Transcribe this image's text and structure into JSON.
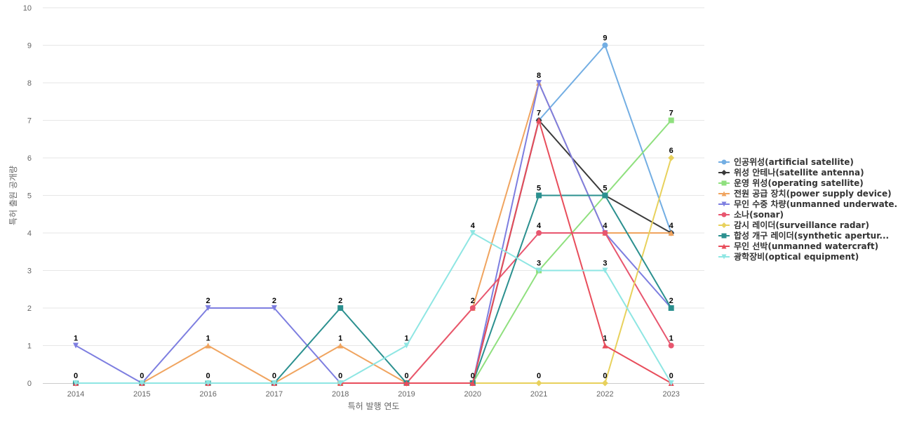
{
  "chart_data": {
    "type": "line",
    "title": "",
    "xlabel": "특허 발행 연도",
    "ylabel": "특허 출원 공개량",
    "x": [
      "2014",
      "2015",
      "2016",
      "2017",
      "2018",
      "2019",
      "2020",
      "2021",
      "2022",
      "2023"
    ],
    "ylim": [
      0,
      10
    ],
    "yticks": [
      0,
      1,
      2,
      3,
      4,
      5,
      6,
      7,
      8,
      9,
      10
    ],
    "grid": true,
    "legend_position": "right",
    "series": [
      {
        "name": "인공위성(artificial satellite)",
        "color": "#73aee3",
        "marker": "circle",
        "values": [
          0,
          0,
          0,
          0,
          0,
          0,
          0,
          7,
          9,
          4
        ]
      },
      {
        "name": "위성 안테나(satellite antenna)",
        "color": "#3a3a3a",
        "marker": "diamond",
        "values": [
          0,
          0,
          0,
          0,
          0,
          0,
          0,
          7,
          5,
          4
        ]
      },
      {
        "name": "운영 위성(operating satellite)",
        "color": "#8fe07e",
        "marker": "square",
        "values": [
          0,
          0,
          0,
          0,
          0,
          0,
          0,
          3,
          5,
          7
        ]
      },
      {
        "name": "전원 공급 장치(power supply device)",
        "color": "#f0a45f",
        "marker": "triangle",
        "values": [
          0,
          0,
          1,
          0,
          1,
          0,
          2,
          8,
          4,
          4
        ]
      },
      {
        "name": "무인 수중 차량(unmanned underwate...",
        "color": "#7d7ee0",
        "marker": "triangle-down",
        "values": [
          1,
          0,
          2,
          2,
          0,
          0,
          0,
          8,
          4,
          2
        ]
      },
      {
        "name": "소나(sonar)",
        "color": "#e8566f",
        "marker": "circle",
        "values": [
          0,
          0,
          0,
          0,
          0,
          0,
          2,
          4,
          4,
          1
        ]
      },
      {
        "name": "감시 레이더(surveillance radar)",
        "color": "#e8d15c",
        "marker": "diamond",
        "values": [
          0,
          0,
          0,
          0,
          0,
          0,
          0,
          0,
          0,
          6
        ]
      },
      {
        "name": "합성 개구 레이더(synthetic apertur...",
        "color": "#2b908f",
        "marker": "square",
        "values": [
          0,
          0,
          0,
          0,
          2,
          0,
          0,
          5,
          5,
          2
        ]
      },
      {
        "name": "무인 선박(unmanned watercraft)",
        "color": "#e84d5b",
        "marker": "triangle",
        "values": [
          0,
          0,
          0,
          0,
          0,
          0,
          0,
          7,
          1,
          0
        ]
      },
      {
        "name": "광학장비(optical equipment)",
        "color": "#8ee6e3",
        "marker": "triangle-down",
        "values": [
          0,
          0,
          0,
          0,
          0,
          1,
          4,
          3,
          3,
          0
        ]
      }
    ],
    "data_labels": [
      {
        "x": "2014",
        "value": "1"
      },
      {
        "x": "2014",
        "value": "0"
      },
      {
        "x": "2015",
        "value": "0"
      },
      {
        "x": "2016",
        "value": "2"
      },
      {
        "x": "2016",
        "value": "1"
      },
      {
        "x": "2016",
        "value": "0"
      },
      {
        "x": "2017",
        "value": "2"
      },
      {
        "x": "2017",
        "value": "0"
      },
      {
        "x": "2018",
        "value": "2"
      },
      {
        "x": "2018",
        "value": "1"
      },
      {
        "x": "2018",
        "value": "0"
      },
      {
        "x": "2019",
        "value": "1"
      },
      {
        "x": "2019",
        "value": "0"
      },
      {
        "x": "2020",
        "value": "4"
      },
      {
        "x": "2020",
        "value": "2"
      },
      {
        "x": "2020",
        "value": "0"
      },
      {
        "x": "2021",
        "value": "8"
      },
      {
        "x": "2021",
        "value": "7"
      },
      {
        "x": "2021",
        "value": "5"
      },
      {
        "x": "2021",
        "value": "4"
      },
      {
        "x": "2021",
        "value": "3"
      },
      {
        "x": "2021",
        "value": "0"
      },
      {
        "x": "2022",
        "value": "9"
      },
      {
        "x": "2022",
        "value": "5"
      },
      {
        "x": "2022",
        "value": "4"
      },
      {
        "x": "2022",
        "value": "3"
      },
      {
        "x": "2022",
        "value": "1"
      },
      {
        "x": "2022",
        "value": "0"
      },
      {
        "x": "2023",
        "value": "7"
      },
      {
        "x": "2023",
        "value": "6"
      },
      {
        "x": "2023",
        "value": "4"
      },
      {
        "x": "2023",
        "value": "2"
      },
      {
        "x": "2023",
        "value": "1"
      },
      {
        "x": "2023",
        "value": "0"
      }
    ]
  }
}
